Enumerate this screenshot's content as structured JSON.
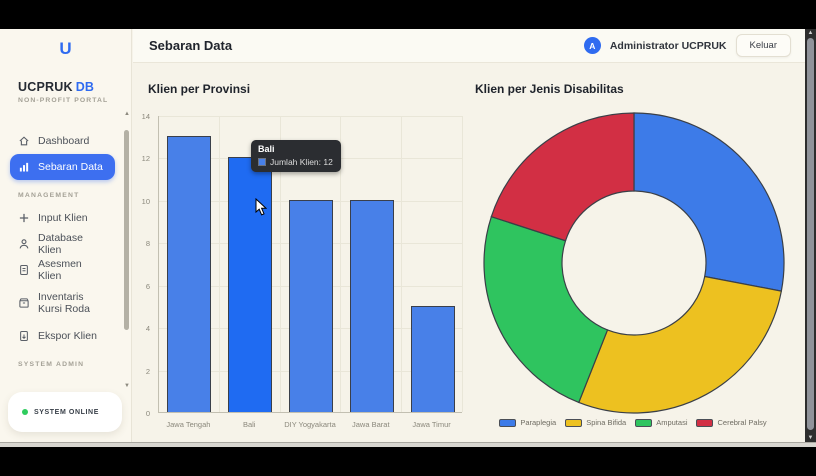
{
  "colors": {
    "accent": "#2f6bf0",
    "sidebar_active": "#3d6ff0",
    "status_dot": "#2ecc5e"
  },
  "sidebar": {
    "logo_letter": "U",
    "brand": "UCPRUK",
    "brand_suffix": "DB",
    "subtitle": "NON-PROFIT PORTAL",
    "nav_groups": [
      {
        "section": null,
        "items": [
          {
            "label": "Dashboard",
            "icon": "home",
            "active": false
          },
          {
            "label": "Sebaran Data",
            "icon": "bar-chart",
            "active": true
          }
        ]
      },
      {
        "section": "MANAGEMENT",
        "items": [
          {
            "label": "Input Klien",
            "icon": "plus",
            "active": false
          },
          {
            "label": "Database Klien",
            "icon": "user",
            "active": false
          },
          {
            "label": "Asesmen Klien",
            "icon": "document",
            "active": false
          },
          {
            "label": "Inventaris Kursi Roda",
            "icon": "archive-box",
            "active": false,
            "tall": true
          },
          {
            "label": "Ekspor Klien",
            "icon": "file-export",
            "active": false
          }
        ]
      },
      {
        "section": "SYSTEM ADMIN",
        "items": []
      }
    ],
    "status": {
      "label": "SYSTEM ONLINE"
    }
  },
  "header": {
    "title": "Sebaran Data",
    "user": {
      "initial": "A",
      "name": "Administrator UCPRUK"
    },
    "logout_label": "Keluar"
  },
  "chart_data": [
    {
      "type": "bar",
      "title": "Klien per Provinsi",
      "categories": [
        "Jawa Tengah",
        "Bali",
        "DIY Yogyakarta",
        "Jawa Barat",
        "Jawa Timur"
      ],
      "series": [
        {
          "name": "Jumlah Klien",
          "values": [
            13,
            12,
            10,
            10,
            5
          ]
        }
      ],
      "ylim": [
        0,
        14
      ],
      "yticks": [
        0,
        2,
        4,
        6,
        8,
        10,
        12,
        14
      ],
      "grid": true,
      "highlighted_index": 1,
      "bar_color": "#4880e8",
      "bar_highlight_color": "#1f6bf2",
      "tooltip": {
        "title": "Bali",
        "series_label": "Jumlah Klien:",
        "value": "12"
      }
    },
    {
      "type": "pie",
      "title": "Klien per Jenis Disabilitas",
      "labels": [
        "Paraplegia",
        "Spina Bifida",
        "Amputasi",
        "Cerebral Palsy"
      ],
      "values": [
        14,
        14,
        12,
        10
      ],
      "colors": [
        "#3d7be8",
        "#edc120",
        "#2fc45f",
        "#d22f44"
      ],
      "donut": true,
      "legend_position": "bottom"
    }
  ]
}
